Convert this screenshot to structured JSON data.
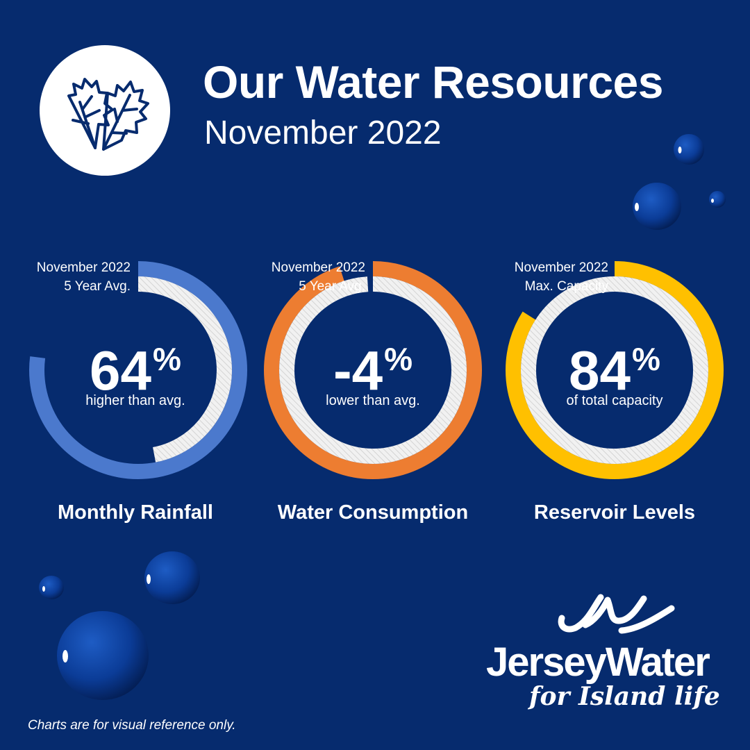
{
  "header": {
    "title": "Our Water Resources",
    "subtitle": "November 2022",
    "badge_icon": "autumn-leaves-icon"
  },
  "chart_data": [
    {
      "type": "donut",
      "label": "Monthly Rainfall",
      "legend": [
        "November 2022",
        "5 Year Avg."
      ],
      "headline_value": "64",
      "headline_unit": "%",
      "description": "higher than avg.",
      "current_fraction": 0.77,
      "reference_fraction": 0.47,
      "color": "#4b79cd"
    },
    {
      "type": "donut",
      "label": "Water Consumption",
      "legend": [
        "November 2022",
        "5 Year Avg."
      ],
      "headline_value": "-4",
      "headline_unit": "%",
      "description": "lower than avg.",
      "current_fraction": 0.95,
      "reference_fraction": 0.99,
      "color": "#ed7d31"
    },
    {
      "type": "donut",
      "label": "Reservoir Levels",
      "legend": [
        "November 2022",
        "Max. Capacity"
      ],
      "headline_value": "84",
      "headline_unit": "%",
      "description": "of total capacity",
      "current_fraction": 0.84,
      "reference_fraction": 1.0,
      "color": "#ffc000"
    }
  ],
  "brand": {
    "name": "JerseyWater",
    "tagline": "for Island life",
    "logo_icon": "wave-logo-icon"
  },
  "footnote": "Charts are for visual reference only."
}
